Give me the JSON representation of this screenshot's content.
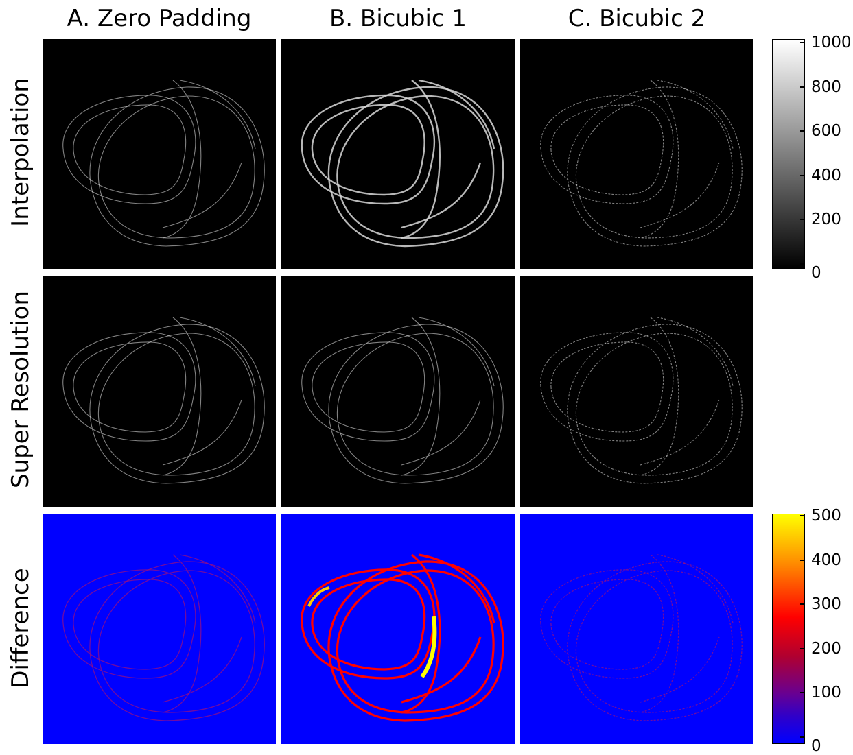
{
  "columns": [
    {
      "label": "A. Zero Padding"
    },
    {
      "label": "B. Bicubic 1"
    },
    {
      "label": "C. Bicubic 2"
    }
  ],
  "rows": [
    {
      "label": "Interpolation"
    },
    {
      "label": "Super Resolution"
    },
    {
      "label": "Difference"
    }
  ],
  "colorbars": {
    "grayscale": {
      "ticks": [
        "1000",
        "800",
        "600",
        "400",
        "200",
        "0"
      ]
    },
    "heat": {
      "ticks": [
        "500",
        "400",
        "300",
        "200",
        "100",
        "0"
      ]
    }
  },
  "colors": {
    "panel_background": "#000000",
    "difference_background": "#0000ff",
    "heat_low": "#0000ff",
    "heat_mid": "#ff0000",
    "heat_high": "#ffff00"
  }
}
